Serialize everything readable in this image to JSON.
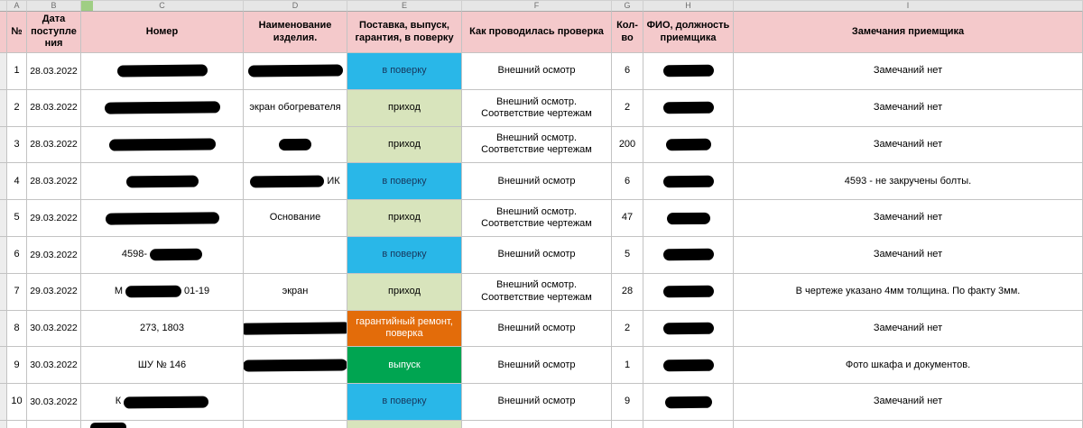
{
  "colors": {
    "header_bg": "#f4c9cb",
    "letters_bg": "#e6e6e6",
    "grid_line": "#c3c3c3",
    "gutter_bg": "#ededed",
    "selection_green": "#9fce84",
    "redaction": "#000000"
  },
  "columns": {
    "letters": [
      "A",
      "B",
      "C",
      "D",
      "E",
      "F",
      "G",
      "H",
      "I"
    ],
    "headers": [
      "№",
      "Дата поступления",
      "Номер",
      "Наименование изделия.",
      "Поставка, выпуск, гарантия, в поверку",
      "Как проводилась проверка",
      "Кол-во",
      "ФИО, должность приемщика",
      "Замечания приемщика"
    ]
  },
  "status_styles": {
    "в поверку": {
      "bg": "#29b7e8",
      "fg": "#17375d"
    },
    "приход": {
      "bg": "#d8e4bc",
      "fg": "#000000"
    },
    "гарантийный ремонт, поверка": {
      "bg": "#e36c0a",
      "fg": "#ffffff"
    },
    "выпуск": {
      "bg": "#00a551",
      "fg": "#ffffff"
    }
  },
  "rows": [
    {
      "num": "1",
      "date": "28.03.2022",
      "number": {
        "redacted": true,
        "rw": 100
      },
      "name": {
        "redacted": true,
        "rw": 105
      },
      "status": "в поверку",
      "check": "Внешний осмотр",
      "qty": "6",
      "receiver": {
        "redacted": true,
        "rw": 56
      },
      "remarks": "Замечаний нет"
    },
    {
      "num": "2",
      "date": "28.03.2022",
      "number": {
        "redacted": true,
        "rw": 128
      },
      "name": {
        "text": "экран обогревателя"
      },
      "status": "приход",
      "check": "Внешний осмотр. Соответствие чертежам",
      "qty": "2",
      "receiver": {
        "redacted": true,
        "rw": 56
      },
      "remarks": "Замечаний нет"
    },
    {
      "num": "3",
      "date": "28.03.2022",
      "number": {
        "redacted": true,
        "rw": 118
      },
      "name": {
        "redacted": true,
        "rw": 36
      },
      "status": "приход",
      "check": "Внешний осмотр. Соответствие чертежам",
      "qty": "200",
      "receiver": {
        "redacted": true,
        "rw": 50
      },
      "remarks": "Замечаний нет"
    },
    {
      "num": "4",
      "date": "28.03.2022",
      "number": {
        "redacted": true,
        "rw": 80
      },
      "name": {
        "redacted": true,
        "rw": 82,
        "suffix": "ИК"
      },
      "status": "в поверку",
      "check": "Внешний осмотр",
      "qty": "6",
      "receiver": {
        "redacted": true,
        "rw": 56
      },
      "remarks": "4593 - не закручены болты."
    },
    {
      "num": "5",
      "date": "29.03.2022",
      "number": {
        "redacted": true,
        "rw": 126
      },
      "name": {
        "text": "Основание"
      },
      "status": "приход",
      "check": "Внешний осмотр. Соответствие чертежам",
      "qty": "47",
      "receiver": {
        "redacted": true,
        "rw": 48
      },
      "remarks": "Замечаний нет"
    },
    {
      "num": "6",
      "date": "29.03.2022",
      "number": {
        "prefix": "4598-",
        "redacted": true,
        "rw": 58
      },
      "name": {
        "text": ""
      },
      "status": "в поверку",
      "check": "Внешний осмотр",
      "qty": "5",
      "receiver": {
        "redacted": true,
        "rw": 56
      },
      "remarks": "Замечаний нет"
    },
    {
      "num": "7",
      "date": "29.03.2022",
      "number": {
        "prefix": "М",
        "redacted": true,
        "rw": 62,
        "suffix": "01-19"
      },
      "name": {
        "text": "экран"
      },
      "status": "приход",
      "check": "Внешний осмотр. Соответствие чертежам",
      "qty": "28",
      "receiver": {
        "redacted": true,
        "rw": 56
      },
      "remarks": "В чертеже указано 4мм толщина. По факту 3мм."
    },
    {
      "num": "8",
      "date": "30.03.2022",
      "number": {
        "text": "273, 1803"
      },
      "name": {
        "redacted": true,
        "rw": 122
      },
      "status": "гарантийный ремонт, поверка",
      "check": "Внешний осмотр",
      "qty": "2",
      "receiver": {
        "redacted": true,
        "rw": 56
      },
      "remarks": "Замечаний нет"
    },
    {
      "num": "9",
      "date": "30.03.2022",
      "number": {
        "text": "ШУ № 146"
      },
      "name": {
        "redacted": true,
        "rw": 116
      },
      "status": "выпуск",
      "check": "Внешний осмотр",
      "qty": "1",
      "receiver": {
        "redacted": true,
        "rw": 56
      },
      "remarks": "Фото шкафа и документов."
    },
    {
      "num": "10",
      "date": "30.03.2022",
      "number": {
        "prefix": "К",
        "redacted": true,
        "rw": 94
      },
      "name": {
        "text": ""
      },
      "status": "в поверку",
      "check": "Внешний осмотр",
      "qty": "9",
      "receiver": {
        "redacted": true,
        "rw": 52
      },
      "remarks": "Замечаний нет"
    }
  ],
  "partial_row": {
    "status": "приход",
    "redaction_rw": 40
  }
}
